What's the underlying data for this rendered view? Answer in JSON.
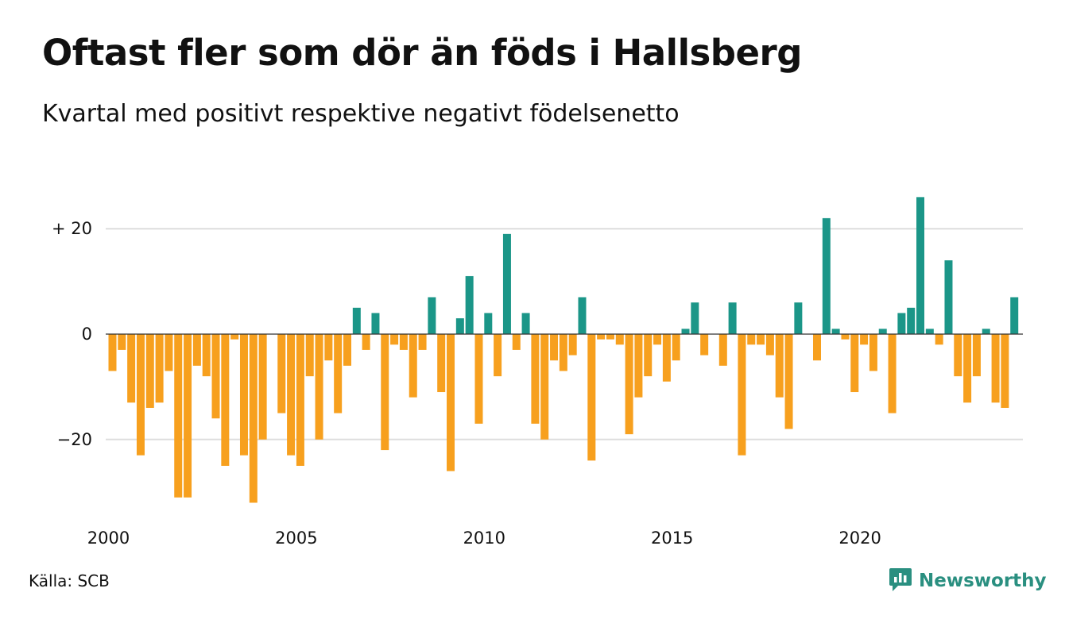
{
  "header": {
    "title": "Oftast fler som dör än föds i Hallsberg",
    "subtitle": "Kvartal med positivt respektive negativt födelsenetto"
  },
  "footer": {
    "source": "Källa: SCB",
    "brand": "Newsworthy"
  },
  "colors": {
    "positive": "#1b9688",
    "negative": "#f7a01e",
    "grid": "#dddddd",
    "brand": "#2a8f80"
  },
  "chart_data": {
    "type": "bar",
    "title": "Oftast fler som dör än föds i Hallsberg",
    "subtitle": "Kvartal med positivt respektive negativt födelsenetto",
    "x_start": 2000,
    "periods_per_year": 4,
    "x_ticks": [
      {
        "value": 2000,
        "label": "2000"
      },
      {
        "value": 2005,
        "label": "2005"
      },
      {
        "value": 2010,
        "label": "2010"
      },
      {
        "value": 2015,
        "label": "2015"
      },
      {
        "value": 2020,
        "label": "2020"
      }
    ],
    "y_ticks": [
      {
        "value": 20,
        "label": "+ 20"
      },
      {
        "value": 0,
        "label": "0"
      },
      {
        "value": -20,
        "label": "−20"
      }
    ],
    "ylim": [
      -34,
      28
    ],
    "grid": true,
    "values": [
      -7,
      -3,
      -13,
      -23,
      -14,
      -13,
      -7,
      -31,
      -31,
      -6,
      -8,
      -16,
      -25,
      -1,
      -23,
      -32,
      -20,
      0,
      -15,
      -23,
      -25,
      -8,
      -20,
      -5,
      -15,
      -6,
      5,
      -3,
      4,
      -22,
      -2,
      -3,
      -12,
      -3,
      7,
      -11,
      -26,
      3,
      11,
      -17,
      4,
      -8,
      19,
      -3,
      4,
      -17,
      -20,
      -5,
      -7,
      -4,
      7,
      -24,
      -1,
      -1,
      -2,
      -19,
      -12,
      -8,
      -2,
      -9,
      -5,
      1,
      6,
      -4,
      0,
      -6,
      6,
      -23,
      -2,
      -2,
      -4,
      -12,
      -18,
      6,
      0,
      -5,
      22,
      1,
      -1,
      -11,
      -2,
      -7,
      1,
      -15,
      4,
      5,
      26,
      1,
      -2,
      14,
      -8,
      -13,
      -8,
      1,
      -13,
      -14,
      7
    ]
  }
}
